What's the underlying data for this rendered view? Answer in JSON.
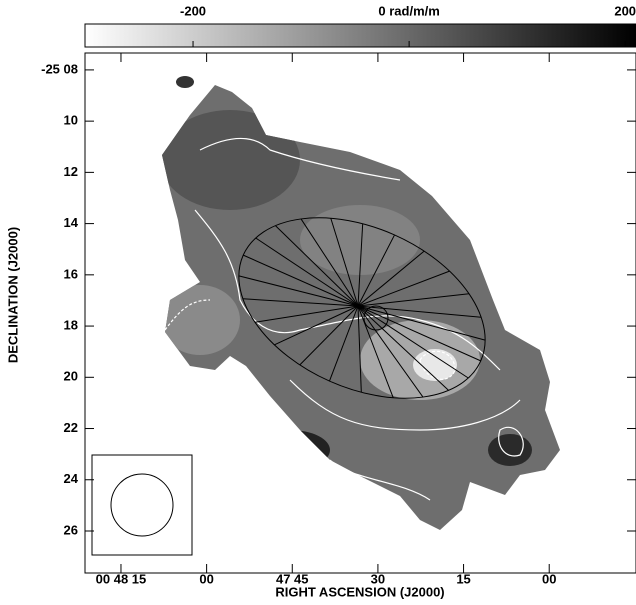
{
  "chart_data": {
    "type": "image",
    "colorbar": {
      "lim": [
        -300,
        210
      ],
      "colors": [
        "#ffffff",
        "#000000"
      ],
      "ticks": [
        {
          "value": -200,
          "label": "-200"
        },
        {
          "value": 0,
          "label": "0 rad/m/m"
        },
        {
          "value": 200,
          "label": "200"
        }
      ]
    },
    "xlabel": "RIGHT ASCENSION (J2000)",
    "ylabel": "DECLINATION (J2000)",
    "xlim": [
      81.3,
      -15.2
    ],
    "xticks": [
      {
        "value": 75,
        "label": "00 48 15"
      },
      {
        "value": 60,
        "label": "00"
      },
      {
        "value": 45,
        "label": "47 45"
      },
      30,
      15,
      {
        "value": 0,
        "label": "00"
      }
    ],
    "ylim": [
      27.64,
      7.34
    ],
    "yticks": [
      {
        "value": 8,
        "label": "-25 08"
      },
      10,
      12,
      14,
      16,
      18,
      20,
      22,
      24,
      26
    ]
  }
}
